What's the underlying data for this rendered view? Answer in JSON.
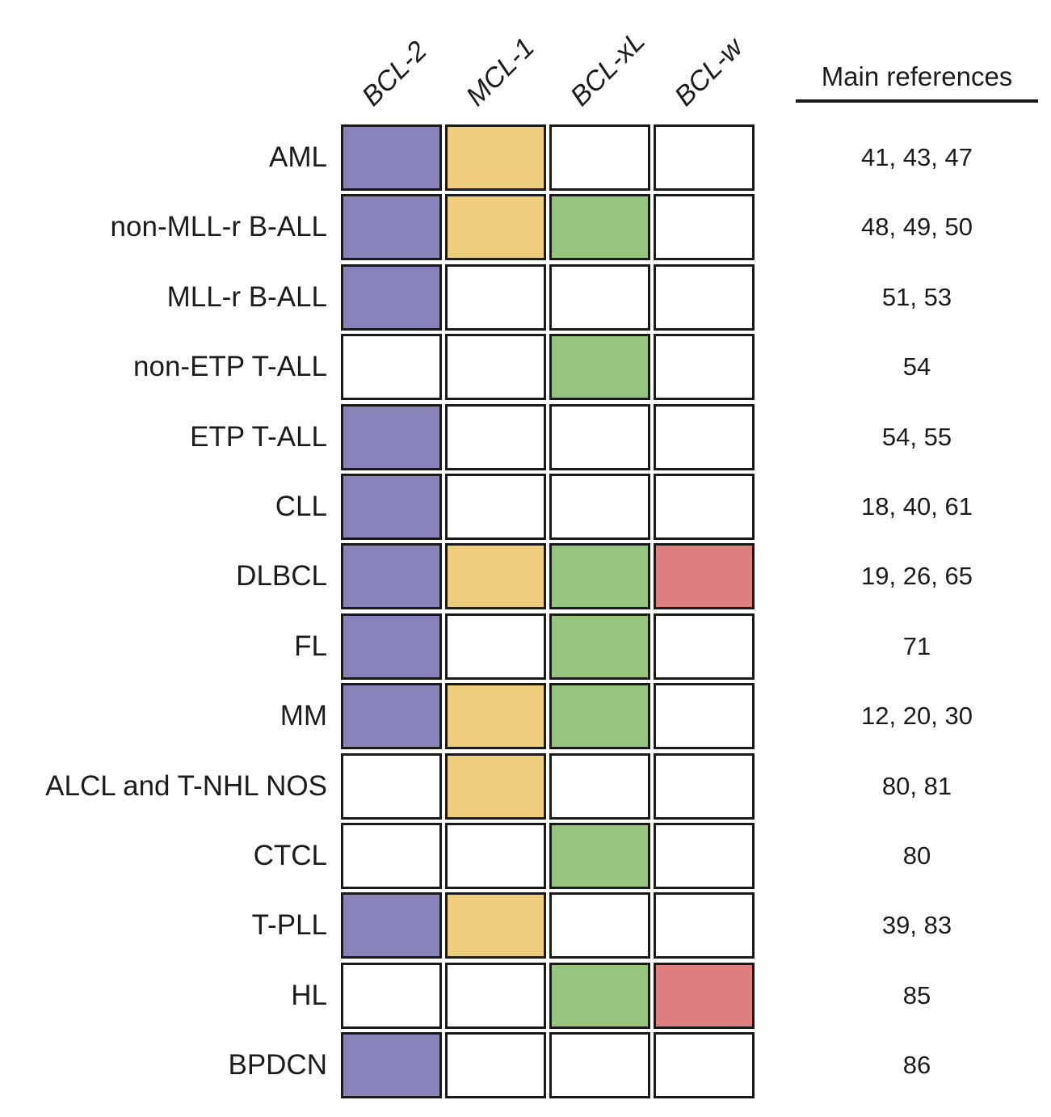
{
  "figure": {
    "references_header": "Main references",
    "empty_color": "#FFFFFF",
    "border_color": "#1A1A1A",
    "columns": [
      {
        "id": "bcl-2",
        "label": "BCL-2",
        "color": "#8884BB"
      },
      {
        "id": "mcl-1",
        "label": "MCL-1",
        "color": "#EECE7D"
      },
      {
        "id": "bcl-xl",
        "label": "BCL-xL",
        "color": "#96C57E"
      },
      {
        "id": "bcl-w",
        "label": "BCL-w",
        "color": "#DD7F7F"
      }
    ],
    "rows": [
      {
        "label": "AML",
        "cells": [
          1,
          1,
          0,
          0
        ],
        "references": "41, 43, 47"
      },
      {
        "label": "non-MLL-r B-ALL",
        "cells": [
          1,
          1,
          1,
          0
        ],
        "references": "48, 49, 50"
      },
      {
        "label": "MLL-r B-ALL",
        "cells": [
          1,
          0,
          0,
          0
        ],
        "references": "51, 53"
      },
      {
        "label": "non-ETP T-ALL",
        "cells": [
          0,
          0,
          1,
          0
        ],
        "references": "54"
      },
      {
        "label": "ETP T-ALL",
        "cells": [
          1,
          0,
          0,
          0
        ],
        "references": "54, 55"
      },
      {
        "label": "CLL",
        "cells": [
          1,
          0,
          0,
          0
        ],
        "references": "18, 40, 61"
      },
      {
        "label": "DLBCL",
        "cells": [
          1,
          1,
          1,
          1
        ],
        "references": "19, 26, 65"
      },
      {
        "label": "FL",
        "cells": [
          1,
          0,
          1,
          0
        ],
        "references": "71"
      },
      {
        "label": "MM",
        "cells": [
          1,
          1,
          1,
          0
        ],
        "references": "12, 20, 30"
      },
      {
        "label": "ALCL and T-NHL NOS",
        "cells": [
          0,
          1,
          0,
          0
        ],
        "references": "80, 81"
      },
      {
        "label": "CTCL",
        "cells": [
          0,
          0,
          1,
          0
        ],
        "references": "80"
      },
      {
        "label": "T-PLL",
        "cells": [
          1,
          1,
          0,
          0
        ],
        "references": "39, 83"
      },
      {
        "label": "HL",
        "cells": [
          0,
          0,
          1,
          1
        ],
        "references": "85"
      },
      {
        "label": "BPDCN",
        "cells": [
          1,
          0,
          0,
          0
        ],
        "references": "86"
      }
    ]
  },
  "chart_data": {
    "type": "heatmap",
    "title": "",
    "columns": [
      "BCL-2",
      "MCL-1",
      "BCL-xL",
      "BCL-w"
    ],
    "rows": [
      "AML",
      "non-MLL-r B-ALL",
      "MLL-r B-ALL",
      "non-ETP T-ALL",
      "ETP T-ALL",
      "CLL",
      "DLBCL",
      "FL",
      "MM",
      "ALCL and T-NHL NOS",
      "CTCL",
      "T-PLL",
      "HL",
      "BPDCN"
    ],
    "matrix": [
      [
        1,
        1,
        0,
        0
      ],
      [
        1,
        1,
        1,
        0
      ],
      [
        1,
        0,
        0,
        0
      ],
      [
        0,
        0,
        1,
        0
      ],
      [
        1,
        0,
        0,
        0
      ],
      [
        1,
        0,
        0,
        0
      ],
      [
        1,
        1,
        1,
        1
      ],
      [
        1,
        0,
        1,
        0
      ],
      [
        1,
        1,
        1,
        0
      ],
      [
        0,
        1,
        0,
        0
      ],
      [
        0,
        0,
        1,
        0
      ],
      [
        1,
        1,
        0,
        0
      ],
      [
        0,
        0,
        1,
        1
      ],
      [
        1,
        0,
        0,
        0
      ]
    ],
    "cell_colors": {
      "BCL-2": "#8884BB",
      "MCL-1": "#EECE7D",
      "BCL-xL": "#96C57E",
      "BCL-w": "#DD7F7F",
      "none": "#FFFFFF"
    },
    "references_header": "Main references",
    "references": [
      "41, 43, 47",
      "48, 49, 50",
      "51, 53",
      "54",
      "54, 55",
      "18, 40, 61",
      "19, 26, 65",
      "71",
      "12, 20, 30",
      "80, 81",
      "80",
      "39, 83",
      "85",
      "86"
    ],
    "layout": {
      "grid": "on",
      "value_encoding": "filled cell = reported dependency on that protein"
    }
  }
}
